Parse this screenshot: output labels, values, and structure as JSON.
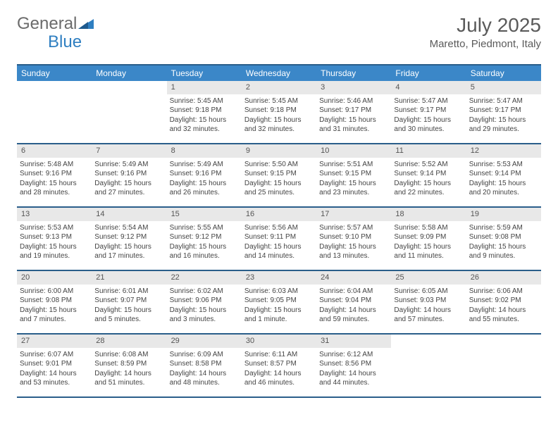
{
  "brand": {
    "part1": "General",
    "part2": "Blue"
  },
  "title": "July 2025",
  "location": "Maretto, Piedmont, Italy",
  "colors": {
    "header_bg": "#3b87c8",
    "header_border": "#2a5e8a",
    "daynum_bg": "#e8e8e8",
    "text": "#444444"
  },
  "day_names": [
    "Sunday",
    "Monday",
    "Tuesday",
    "Wednesday",
    "Thursday",
    "Friday",
    "Saturday"
  ],
  "weeks": [
    [
      null,
      null,
      {
        "n": "1",
        "sr": "Sunrise: 5:45 AM",
        "ss": "Sunset: 9:18 PM",
        "dl": "Daylight: 15 hours and 32 minutes."
      },
      {
        "n": "2",
        "sr": "Sunrise: 5:45 AM",
        "ss": "Sunset: 9:18 PM",
        "dl": "Daylight: 15 hours and 32 minutes."
      },
      {
        "n": "3",
        "sr": "Sunrise: 5:46 AM",
        "ss": "Sunset: 9:17 PM",
        "dl": "Daylight: 15 hours and 31 minutes."
      },
      {
        "n": "4",
        "sr": "Sunrise: 5:47 AM",
        "ss": "Sunset: 9:17 PM",
        "dl": "Daylight: 15 hours and 30 minutes."
      },
      {
        "n": "5",
        "sr": "Sunrise: 5:47 AM",
        "ss": "Sunset: 9:17 PM",
        "dl": "Daylight: 15 hours and 29 minutes."
      }
    ],
    [
      {
        "n": "6",
        "sr": "Sunrise: 5:48 AM",
        "ss": "Sunset: 9:16 PM",
        "dl": "Daylight: 15 hours and 28 minutes."
      },
      {
        "n": "7",
        "sr": "Sunrise: 5:49 AM",
        "ss": "Sunset: 9:16 PM",
        "dl": "Daylight: 15 hours and 27 minutes."
      },
      {
        "n": "8",
        "sr": "Sunrise: 5:49 AM",
        "ss": "Sunset: 9:16 PM",
        "dl": "Daylight: 15 hours and 26 minutes."
      },
      {
        "n": "9",
        "sr": "Sunrise: 5:50 AM",
        "ss": "Sunset: 9:15 PM",
        "dl": "Daylight: 15 hours and 25 minutes."
      },
      {
        "n": "10",
        "sr": "Sunrise: 5:51 AM",
        "ss": "Sunset: 9:15 PM",
        "dl": "Daylight: 15 hours and 23 minutes."
      },
      {
        "n": "11",
        "sr": "Sunrise: 5:52 AM",
        "ss": "Sunset: 9:14 PM",
        "dl": "Daylight: 15 hours and 22 minutes."
      },
      {
        "n": "12",
        "sr": "Sunrise: 5:53 AM",
        "ss": "Sunset: 9:14 PM",
        "dl": "Daylight: 15 hours and 20 minutes."
      }
    ],
    [
      {
        "n": "13",
        "sr": "Sunrise: 5:53 AM",
        "ss": "Sunset: 9:13 PM",
        "dl": "Daylight: 15 hours and 19 minutes."
      },
      {
        "n": "14",
        "sr": "Sunrise: 5:54 AM",
        "ss": "Sunset: 9:12 PM",
        "dl": "Daylight: 15 hours and 17 minutes."
      },
      {
        "n": "15",
        "sr": "Sunrise: 5:55 AM",
        "ss": "Sunset: 9:12 PM",
        "dl": "Daylight: 15 hours and 16 minutes."
      },
      {
        "n": "16",
        "sr": "Sunrise: 5:56 AM",
        "ss": "Sunset: 9:11 PM",
        "dl": "Daylight: 15 hours and 14 minutes."
      },
      {
        "n": "17",
        "sr": "Sunrise: 5:57 AM",
        "ss": "Sunset: 9:10 PM",
        "dl": "Daylight: 15 hours and 13 minutes."
      },
      {
        "n": "18",
        "sr": "Sunrise: 5:58 AM",
        "ss": "Sunset: 9:09 PM",
        "dl": "Daylight: 15 hours and 11 minutes."
      },
      {
        "n": "19",
        "sr": "Sunrise: 5:59 AM",
        "ss": "Sunset: 9:08 PM",
        "dl": "Daylight: 15 hours and 9 minutes."
      }
    ],
    [
      {
        "n": "20",
        "sr": "Sunrise: 6:00 AM",
        "ss": "Sunset: 9:08 PM",
        "dl": "Daylight: 15 hours and 7 minutes."
      },
      {
        "n": "21",
        "sr": "Sunrise: 6:01 AM",
        "ss": "Sunset: 9:07 PM",
        "dl": "Daylight: 15 hours and 5 minutes."
      },
      {
        "n": "22",
        "sr": "Sunrise: 6:02 AM",
        "ss": "Sunset: 9:06 PM",
        "dl": "Daylight: 15 hours and 3 minutes."
      },
      {
        "n": "23",
        "sr": "Sunrise: 6:03 AM",
        "ss": "Sunset: 9:05 PM",
        "dl": "Daylight: 15 hours and 1 minute."
      },
      {
        "n": "24",
        "sr": "Sunrise: 6:04 AM",
        "ss": "Sunset: 9:04 PM",
        "dl": "Daylight: 14 hours and 59 minutes."
      },
      {
        "n": "25",
        "sr": "Sunrise: 6:05 AM",
        "ss": "Sunset: 9:03 PM",
        "dl": "Daylight: 14 hours and 57 minutes."
      },
      {
        "n": "26",
        "sr": "Sunrise: 6:06 AM",
        "ss": "Sunset: 9:02 PM",
        "dl": "Daylight: 14 hours and 55 minutes."
      }
    ],
    [
      {
        "n": "27",
        "sr": "Sunrise: 6:07 AM",
        "ss": "Sunset: 9:01 PM",
        "dl": "Daylight: 14 hours and 53 minutes."
      },
      {
        "n": "28",
        "sr": "Sunrise: 6:08 AM",
        "ss": "Sunset: 8:59 PM",
        "dl": "Daylight: 14 hours and 51 minutes."
      },
      {
        "n": "29",
        "sr": "Sunrise: 6:09 AM",
        "ss": "Sunset: 8:58 PM",
        "dl": "Daylight: 14 hours and 48 minutes."
      },
      {
        "n": "30",
        "sr": "Sunrise: 6:11 AM",
        "ss": "Sunset: 8:57 PM",
        "dl": "Daylight: 14 hours and 46 minutes."
      },
      {
        "n": "31",
        "sr": "Sunrise: 6:12 AM",
        "ss": "Sunset: 8:56 PM",
        "dl": "Daylight: 14 hours and 44 minutes."
      },
      null,
      null
    ]
  ]
}
